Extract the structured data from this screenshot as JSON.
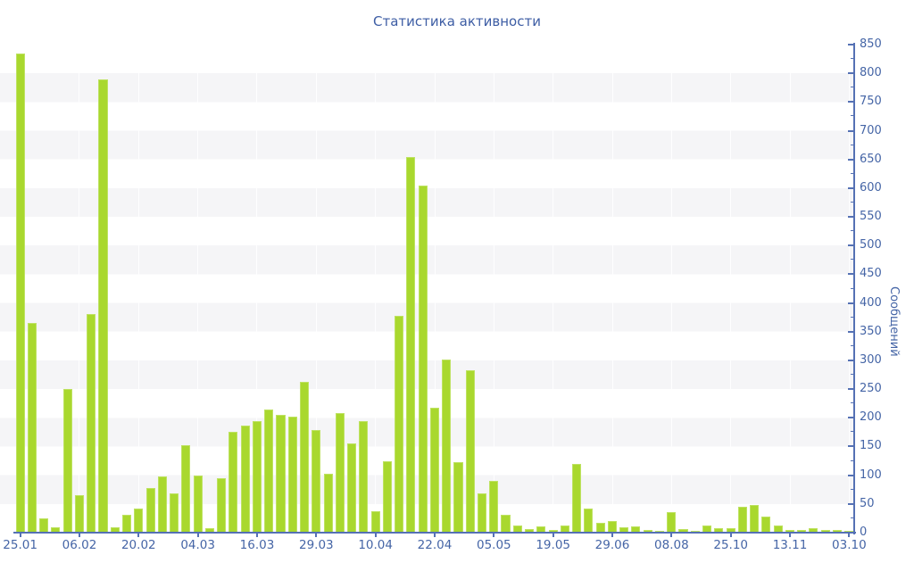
{
  "title": "Статистика активности",
  "colors": {
    "bar": "#a9d82e",
    "axis_line": "#5571b4",
    "tick_text": "#4565a6",
    "title_text": "#3d5da4",
    "stripe": "#f5f5f7",
    "background": "#ffffff"
  },
  "chart_data": {
    "type": "bar",
    "title": "Статистика активности",
    "ylabel": "Сообщений",
    "xlabel": "",
    "ylim": [
      0,
      850
    ],
    "y_major_step": 50,
    "y_minor_step": 25,
    "y_tick_labels": [
      0,
      50,
      100,
      150,
      200,
      250,
      300,
      350,
      400,
      450,
      500,
      550,
      600,
      650,
      700,
      750,
      800,
      850
    ],
    "grid": "horizontal-stripes",
    "legend_position": "none",
    "bar_count": 71,
    "x_tick_every": 5,
    "x_tick_labels": [
      "25.01",
      "06.02",
      "20.02",
      "04.03",
      "16.03",
      "29.03",
      "10.04",
      "22.04",
      "05.05",
      "19.05",
      "29.06",
      "08.08",
      "25.10",
      "13.11",
      "03.10"
    ],
    "values": [
      835,
      365,
      25,
      10,
      250,
      65,
      380,
      790,
      10,
      31,
      42,
      78,
      98,
      68,
      153,
      100,
      8,
      95,
      175,
      186,
      194,
      214,
      205,
      202,
      262,
      178,
      103,
      209,
      156,
      194,
      38,
      125,
      378,
      655,
      605,
      218,
      302,
      123,
      283,
      68,
      90,
      31,
      12,
      7,
      11,
      4,
      12,
      120,
      42,
      17,
      20,
      9,
      11,
      4,
      3,
      35,
      6,
      3,
      12,
      8,
      8,
      45,
      48,
      28,
      12,
      5,
      4,
      8,
      4,
      4,
      3
    ]
  }
}
